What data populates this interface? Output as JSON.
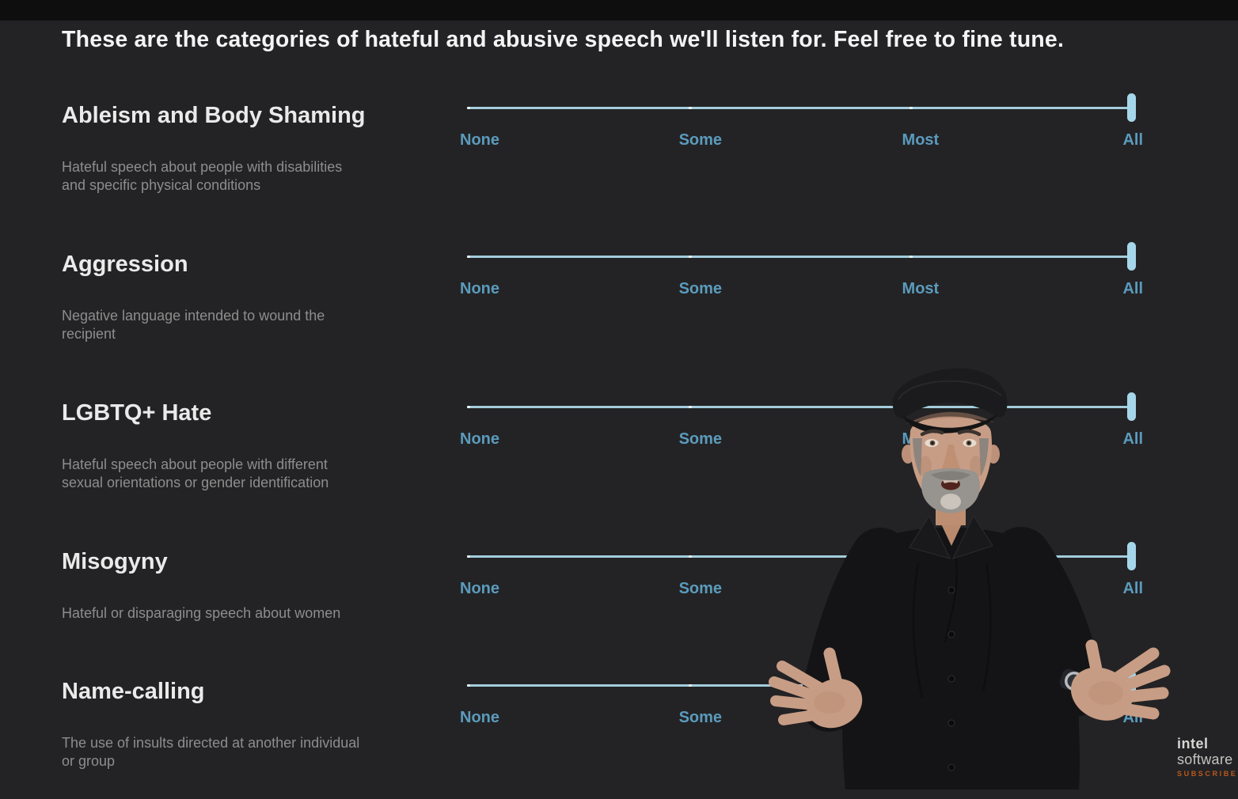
{
  "page": {
    "title": "These are the categories of hateful and abusive speech we'll listen for. Feel free to fine tune."
  },
  "slider_labels": [
    "None",
    "Some",
    "Most",
    "All"
  ],
  "categories": [
    {
      "name": "Ableism and Body Shaming",
      "description": "Hateful speech about people with disabilities\nand specific physical conditions",
      "value": "All"
    },
    {
      "name": "Aggression",
      "description": "Negative language intended to wound the\nrecipient",
      "value": "All"
    },
    {
      "name": "LGBTQ+ Hate",
      "description": "Hateful speech about people with different\nsexual orientations or gender identification",
      "value": "All"
    },
    {
      "name": "Misogyny",
      "description": "Hateful or disparaging speech about women",
      "value": "All"
    },
    {
      "name": "Name-calling",
      "description": "The use of insults directed at another individual\nor group",
      "value": "All"
    }
  ],
  "colors": {
    "background": "#232325",
    "slider_track": "#a2cddd",
    "slider_handle": "#a6d6e9",
    "slider_label": "#5b9bbc",
    "subscribe": "#bc581c"
  },
  "branding": {
    "logo_line1": "intel",
    "logo_line2": "software",
    "subscribe_label": "SUBSCRIBE"
  }
}
